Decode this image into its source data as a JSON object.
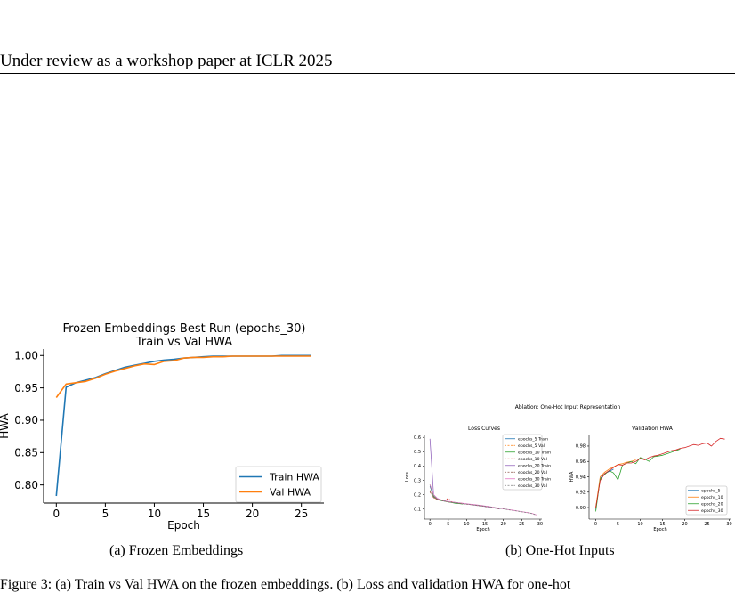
{
  "header": {
    "text": "Under review as a workshop paper at ICLR 2025"
  },
  "figure_a": {
    "title_line1": "Frozen Embeddings Best Run (epochs_30)",
    "title_line2": "Train vs Val HWA",
    "caption": "(a)  Frozen Embeddings"
  },
  "figure_b": {
    "suptitle": "Ablation: One-Hot Input Representation",
    "caption": "(b)  One-Hot Inputs"
  },
  "footer": {
    "text": "Figure 3: (a) Train vs Val HWA on the frozen embeddings. (b) Loss and validation HWA for one-hot"
  },
  "chart_data": [
    {
      "type": "line",
      "title": "Frozen Embeddings Best Run (epochs_30)\nTrain vs Val HWA",
      "xlabel": "Epoch",
      "ylabel": "HWA",
      "xlim": [
        -1.3,
        27.3
      ],
      "ylim": [
        0.772,
        1.01
      ],
      "xticks": [
        0,
        5,
        10,
        15,
        20,
        25
      ],
      "yticks": [
        0.8,
        0.85,
        0.9,
        0.95,
        1.0
      ],
      "ytick_labels": [
        "0.80",
        "0.85",
        "0.90",
        "0.95",
        "1.00"
      ],
      "legend": "bottom-right",
      "series": [
        {
          "name": "Train HWA",
          "color": "#1f77b4",
          "x": [
            0,
            1,
            2,
            3,
            4,
            5,
            6,
            7,
            8,
            9,
            10,
            11,
            12,
            13,
            14,
            15,
            16,
            17,
            18,
            19,
            20,
            21,
            22,
            23,
            24,
            25,
            26
          ],
          "y": [
            0.783,
            0.951,
            0.958,
            0.962,
            0.966,
            0.972,
            0.977,
            0.982,
            0.985,
            0.988,
            0.991,
            0.993,
            0.994,
            0.996,
            0.997,
            0.998,
            0.999,
            0.999,
            0.999,
            0.999,
            0.999,
            0.999,
            0.999,
            1.0,
            1.0,
            1.0,
            1.0
          ]
        },
        {
          "name": "Val HWA",
          "color": "#ff7f0e",
          "x": [
            0,
            1,
            2,
            3,
            4,
            5,
            6,
            7,
            8,
            9,
            10,
            11,
            12,
            13,
            14,
            15,
            16,
            17,
            18,
            19,
            20,
            21,
            22,
            23,
            24,
            25,
            26
          ],
          "y": [
            0.935,
            0.956,
            0.958,
            0.96,
            0.965,
            0.971,
            0.976,
            0.98,
            0.984,
            0.987,
            0.986,
            0.991,
            0.992,
            0.996,
            0.997,
            0.997,
            0.998,
            0.998,
            0.999,
            0.999,
            0.999,
            0.999,
            0.999,
            0.999,
            0.999,
            0.999,
            0.999
          ]
        }
      ]
    },
    {
      "type": "line",
      "title": "Loss Curves",
      "xlabel": "Epoch",
      "ylabel": "Loss",
      "xlim": [
        -1.5,
        30.5
      ],
      "ylim": [
        0.03,
        0.62
      ],
      "xticks": [
        0,
        5,
        10,
        15,
        20,
        25,
        30
      ],
      "yticks": [
        0.1,
        0.2,
        0.3,
        0.4,
        0.5,
        0.6
      ],
      "legend": "top-right",
      "series": [
        {
          "name": "epochs_5 Train",
          "color": "#1f77b4",
          "dash": false,
          "x": [
            0,
            1,
            2,
            3,
            4
          ],
          "y": [
            0.26,
            0.19,
            0.17,
            0.16,
            0.155
          ]
        },
        {
          "name": "epochs_5 Val",
          "color": "#ff7f0e",
          "dash": true,
          "x": [
            0,
            1,
            2,
            3,
            4
          ],
          "y": [
            0.22,
            0.18,
            0.165,
            0.16,
            0.155
          ]
        },
        {
          "name": "epochs_10 Train",
          "color": "#2ca02c",
          "dash": false,
          "x": [
            0,
            1,
            2,
            3,
            4,
            5,
            6,
            7,
            8,
            9
          ],
          "y": [
            0.27,
            0.19,
            0.17,
            0.16,
            0.155,
            0.15,
            0.145,
            0.14,
            0.138,
            0.135
          ]
        },
        {
          "name": "epochs_10 Val",
          "color": "#d62728",
          "dash": true,
          "x": [
            0,
            1,
            2,
            3,
            4,
            5,
            6,
            7,
            8,
            9
          ],
          "y": [
            0.23,
            0.18,
            0.17,
            0.165,
            0.16,
            0.175,
            0.15,
            0.145,
            0.142,
            0.14
          ]
        },
        {
          "name": "epochs_20 Train",
          "color": "#9467bd",
          "dash": false,
          "x": [
            0,
            1,
            2,
            3,
            4,
            5,
            6,
            7,
            8,
            9,
            10,
            11,
            12,
            13,
            14,
            15,
            16,
            17,
            18,
            19
          ],
          "y": [
            0.59,
            0.2,
            0.175,
            0.163,
            0.157,
            0.152,
            0.148,
            0.145,
            0.142,
            0.138,
            0.135,
            0.132,
            0.128,
            0.125,
            0.122,
            0.118,
            0.115,
            0.11,
            0.105,
            0.1
          ]
        },
        {
          "name": "epochs_20 Val",
          "color": "#8c564b",
          "dash": true,
          "x": [
            0,
            1,
            2,
            3,
            4,
            5,
            6,
            7,
            8,
            9,
            10,
            11,
            12,
            13,
            14,
            15,
            16,
            17,
            18,
            19
          ],
          "y": [
            0.22,
            0.18,
            0.168,
            0.16,
            0.155,
            0.15,
            0.147,
            0.144,
            0.14,
            0.137,
            0.134,
            0.131,
            0.128,
            0.124,
            0.121,
            0.118,
            0.114,
            0.11,
            0.106,
            0.102
          ]
        },
        {
          "name": "epochs_30 Train",
          "color": "#e377c2",
          "dash": false,
          "x": [
            0,
            1,
            2,
            3,
            4,
            5,
            6,
            7,
            8,
            9,
            10,
            11,
            12,
            13,
            14,
            15,
            16,
            17,
            18,
            19,
            20,
            21,
            22,
            23,
            24,
            25,
            26,
            27,
            28,
            29
          ],
          "y": [
            0.27,
            0.2,
            0.175,
            0.165,
            0.158,
            0.153,
            0.149,
            0.146,
            0.143,
            0.14,
            0.137,
            0.134,
            0.131,
            0.128,
            0.125,
            0.121,
            0.118,
            0.114,
            0.11,
            0.106,
            0.102,
            0.098,
            0.094,
            0.09,
            0.086,
            0.082,
            0.078,
            0.074,
            0.068,
            0.06
          ]
        },
        {
          "name": "epochs_30 Val",
          "color": "#7f7f7f",
          "dash": true,
          "x": [
            0,
            1,
            2,
            3,
            4,
            5,
            6,
            7,
            8,
            9,
            10,
            11,
            12,
            13,
            14,
            15,
            16,
            17,
            18,
            19,
            20,
            21,
            22,
            23,
            24,
            25,
            26,
            27,
            28,
            29
          ],
          "y": [
            0.23,
            0.185,
            0.17,
            0.162,
            0.156,
            0.151,
            0.147,
            0.144,
            0.141,
            0.138,
            0.135,
            0.132,
            0.129,
            0.126,
            0.123,
            0.12,
            0.116,
            0.113,
            0.109,
            0.105,
            0.101,
            0.097,
            0.093,
            0.089,
            0.085,
            0.081,
            0.077,
            0.073,
            0.067,
            0.058
          ]
        }
      ]
    },
    {
      "type": "line",
      "title": "Validation HWA",
      "xlabel": "Epoch",
      "ylabel": "HWA",
      "xlim": [
        -1.5,
        30.5
      ],
      "ylim": [
        0.885,
        0.995
      ],
      "xticks": [
        0,
        5,
        10,
        15,
        20,
        25,
        30
      ],
      "xtick_labels": [
        "0",
        "5",
        "10",
        "15",
        "20",
        "25",
        "30"
      ],
      "yticks": [
        0.9,
        0.92,
        0.94,
        0.96,
        0.98
      ],
      "ytick_labels": [
        "0.90",
        "0.92",
        "0.94",
        "0.96",
        "0.98"
      ],
      "legend": "bottom-right",
      "series": [
        {
          "name": "epochs_5",
          "color": "#1f77b4",
          "x": [
            0,
            1,
            2,
            3,
            4
          ],
          "y": [
            0.897,
            0.938,
            0.944,
            0.947,
            0.95
          ]
        },
        {
          "name": "epochs_10",
          "color": "#ff7f0e",
          "x": [
            0,
            1,
            2,
            3,
            4,
            5,
            6,
            7,
            8,
            9
          ],
          "y": [
            0.9,
            0.94,
            0.946,
            0.95,
            0.953,
            0.956,
            0.957,
            0.959,
            0.96,
            0.962
          ]
        },
        {
          "name": "epochs_20",
          "color": "#2ca02c",
          "x": [
            0,
            1,
            2,
            3,
            4,
            5,
            6,
            7,
            8,
            9,
            10,
            11,
            12,
            13,
            14,
            15,
            16,
            17,
            18,
            19
          ],
          "y": [
            0.895,
            0.937,
            0.943,
            0.948,
            0.945,
            0.936,
            0.955,
            0.958,
            0.96,
            0.957,
            0.965,
            0.963,
            0.96,
            0.966,
            0.967,
            0.968,
            0.97,
            0.972,
            0.974,
            0.976
          ]
        },
        {
          "name": "epochs_30",
          "color": "#d62728",
          "x": [
            0,
            1,
            2,
            3,
            4,
            5,
            6,
            7,
            8,
            9,
            10,
            11,
            12,
            13,
            14,
            15,
            16,
            17,
            18,
            19,
            20,
            21,
            22,
            23,
            24,
            25,
            26,
            27,
            28,
            29
          ],
          "y": [
            0.9,
            0.935,
            0.944,
            0.948,
            0.952,
            0.956,
            0.955,
            0.958,
            0.958,
            0.96,
            0.964,
            0.962,
            0.965,
            0.967,
            0.968,
            0.97,
            0.972,
            0.974,
            0.975,
            0.977,
            0.978,
            0.98,
            0.982,
            0.981,
            0.983,
            0.984,
            0.98,
            0.986,
            0.99,
            0.989
          ]
        }
      ]
    }
  ]
}
